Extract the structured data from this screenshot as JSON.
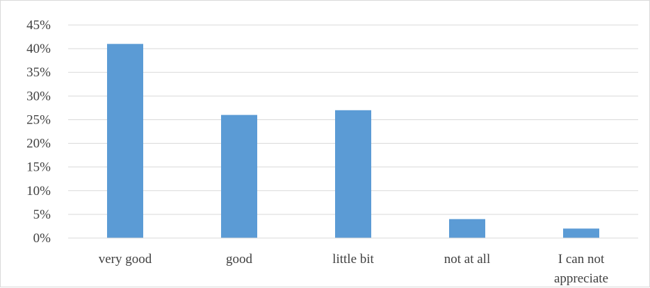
{
  "chart_data": {
    "type": "bar",
    "title": "",
    "xlabel": "",
    "ylabel": "",
    "categories": [
      "very good",
      "good",
      "little bit",
      "not at all",
      "I can not appreciate"
    ],
    "category_lines": [
      [
        "very good"
      ],
      [
        "good"
      ],
      [
        "little bit"
      ],
      [
        "not at all"
      ],
      [
        "I can not",
        "appreciate"
      ]
    ],
    "values": [
      41,
      26,
      27,
      4,
      2
    ],
    "ylim": [
      0,
      45
    ],
    "yticks": [
      "0%",
      "5%",
      "10%",
      "15%",
      "20%",
      "25%",
      "30%",
      "35%",
      "40%",
      "45%"
    ],
    "grid": true,
    "legend": "none",
    "bar_color": "#5b9bd5",
    "grid_color": "#d9d9d9"
  }
}
